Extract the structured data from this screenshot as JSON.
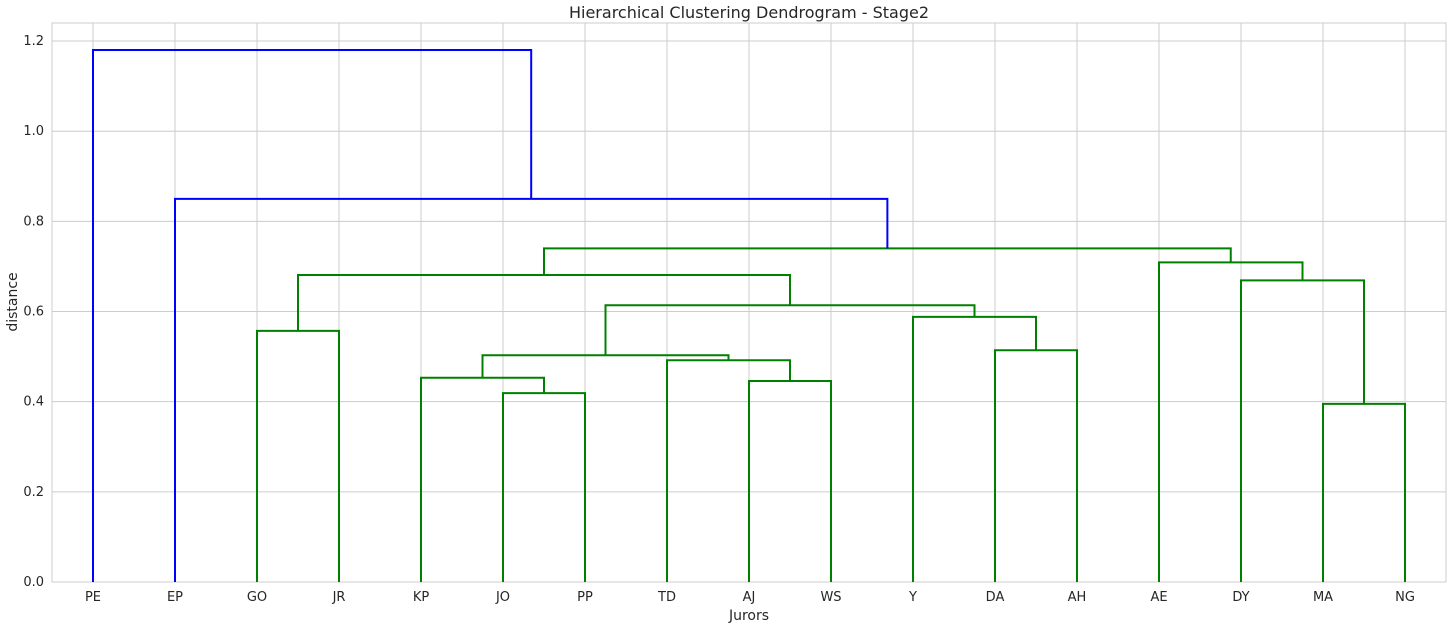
{
  "chart_data": {
    "type": "dendrogram",
    "title": "Hierarchical Clustering Dendrogram - Stage2",
    "xlabel": "Jurors",
    "ylabel": "distance",
    "ylim": [
      0,
      1.24
    ],
    "yticks": [
      "0.0",
      "0.2",
      "0.4",
      "0.6",
      "0.8",
      "1.0",
      "1.2"
    ],
    "ytick_values": [
      0,
      0.2,
      0.4,
      0.6,
      0.8,
      1.0,
      1.2
    ],
    "grid": true,
    "leaves": [
      "PE",
      "EP",
      "GO",
      "JR",
      "KP",
      "JO",
      "PP",
      "TD",
      "AJ",
      "WS",
      "Y",
      "DA",
      "AH",
      "AE",
      "DY",
      "MA",
      "NG"
    ],
    "colors": {
      "above_threshold": "#0000ff",
      "cluster": "#008000",
      "grid": "#cccccc",
      "axes": "#cccccc"
    },
    "merges": [
      {
        "left": "GO",
        "right": "JR",
        "height": 0.557,
        "color": "#008000"
      },
      {
        "left": "JO",
        "right": "PP",
        "height": 0.419,
        "color": "#008000"
      },
      {
        "left": "KP",
        "right": 1,
        "height": 0.453,
        "color": "#008000"
      },
      {
        "left": "AJ",
        "right": "WS",
        "height": 0.446,
        "color": "#008000"
      },
      {
        "left": "TD",
        "right": 3,
        "height": 0.492,
        "color": "#008000"
      },
      {
        "left": 2,
        "right": 4,
        "height": 0.503,
        "color": "#008000"
      },
      {
        "left": "DA",
        "right": "AH",
        "height": 0.514,
        "color": "#008000"
      },
      {
        "left": "Y",
        "right": 6,
        "height": 0.588,
        "color": "#008000"
      },
      {
        "left": 5,
        "right": 7,
        "height": 0.614,
        "color": "#008000"
      },
      {
        "left": 0,
        "right": 8,
        "height": 0.681,
        "color": "#008000"
      },
      {
        "left": "MA",
        "right": "NG",
        "height": 0.395,
        "color": "#008000"
      },
      {
        "left": "DY",
        "right": 10,
        "height": 0.669,
        "color": "#008000"
      },
      {
        "left": "AE",
        "right": 11,
        "height": 0.709,
        "color": "#008000"
      },
      {
        "left": 9,
        "right": 12,
        "height": 0.74,
        "color": "#008000"
      },
      {
        "left": "EP",
        "right": 13,
        "height": 0.85,
        "color": "#0000ff"
      },
      {
        "left": "PE",
        "right": 14,
        "height": 1.18,
        "color": "#0000ff"
      }
    ]
  }
}
